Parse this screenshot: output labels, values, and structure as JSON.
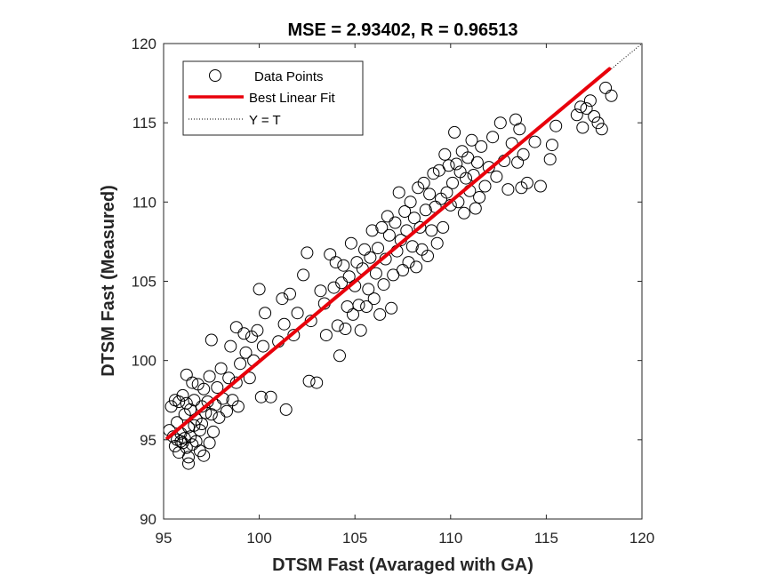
{
  "chart_data": {
    "type": "scatter",
    "title": "MSE = 2.93402, R = 0.96513",
    "xlabel": "DTSM Fast (Avaraged with GA)",
    "ylabel": "DTSM Fast (Measured)",
    "xlim": [
      95,
      120
    ],
    "ylim": [
      90,
      120
    ],
    "xticks": [
      "95",
      "100",
      "105",
      "110",
      "115",
      "120"
    ],
    "yticks": [
      "90",
      "95",
      "100",
      "105",
      "110",
      "115",
      "120"
    ],
    "grid": false,
    "legend": {
      "placement": "top-left",
      "entries": [
        "Data Points",
        "Best Linear Fit",
        "Y = T"
      ]
    },
    "colors": {
      "points": "#000000",
      "fit": "#e8000b",
      "identity": "#000000"
    },
    "series": [
      {
        "name": "Data Points",
        "marker": "open-circle",
        "points": [
          [
            95.3,
            95.6
          ],
          [
            95.4,
            97.1
          ],
          [
            95.5,
            95.2
          ],
          [
            95.6,
            94.6
          ],
          [
            95.7,
            95.0
          ],
          [
            95.8,
            97.4
          ],
          [
            95.9,
            94.9
          ],
          [
            95.7,
            96.1
          ],
          [
            95.6,
            97.5
          ],
          [
            95.8,
            94.2
          ],
          [
            95.9,
            95.4
          ],
          [
            96.0,
            97.8
          ],
          [
            96.0,
            94.8
          ],
          [
            96.1,
            95.1
          ],
          [
            96.1,
            96.6
          ],
          [
            96.2,
            97.3
          ],
          [
            96.2,
            99.1
          ],
          [
            96.2,
            94.5
          ],
          [
            96.3,
            95.8
          ],
          [
            96.3,
            93.9
          ],
          [
            96.4,
            95.2
          ],
          [
            96.4,
            96.9
          ],
          [
            96.5,
            98.6
          ],
          [
            96.5,
            94.7
          ],
          [
            96.3,
            93.5
          ],
          [
            96.6,
            95.9
          ],
          [
            96.6,
            97.5
          ],
          [
            96.7,
            94.9
          ],
          [
            96.7,
            96.3
          ],
          [
            96.8,
            98.5
          ],
          [
            96.9,
            94.3
          ],
          [
            96.9,
            95.6
          ],
          [
            97.0,
            97.1
          ],
          [
            97.0,
            96.0
          ],
          [
            97.1,
            98.2
          ],
          [
            97.1,
            94.0
          ],
          [
            97.2,
            96.7
          ],
          [
            97.3,
            97.4
          ],
          [
            97.4,
            94.8
          ],
          [
            97.4,
            99.0
          ],
          [
            97.5,
            96.6
          ],
          [
            97.5,
            101.3
          ],
          [
            97.6,
            95.5
          ],
          [
            97.7,
            97.2
          ],
          [
            97.8,
            98.3
          ],
          [
            97.9,
            96.4
          ],
          [
            98.0,
            99.5
          ],
          [
            98.1,
            97.6
          ],
          [
            98.3,
            96.8
          ],
          [
            98.4,
            98.9
          ],
          [
            98.5,
            100.9
          ],
          [
            98.6,
            97.5
          ],
          [
            98.8,
            98.6
          ],
          [
            98.8,
            102.1
          ],
          [
            98.9,
            97.1
          ],
          [
            99.0,
            99.8
          ],
          [
            99.2,
            101.7
          ],
          [
            99.3,
            100.5
          ],
          [
            99.5,
            98.9
          ],
          [
            99.6,
            101.5
          ],
          [
            99.7,
            100.0
          ],
          [
            99.9,
            101.9
          ],
          [
            100.0,
            104.5
          ],
          [
            100.1,
            97.7
          ],
          [
            100.2,
            100.9
          ],
          [
            100.3,
            103.0
          ],
          [
            100.6,
            97.7
          ],
          [
            101.0,
            101.2
          ],
          [
            101.2,
            103.9
          ],
          [
            101.3,
            102.3
          ],
          [
            101.4,
            96.9
          ],
          [
            101.6,
            104.2
          ],
          [
            101.8,
            101.6
          ],
          [
            102.0,
            103.0
          ],
          [
            102.3,
            105.4
          ],
          [
            102.5,
            106.8
          ],
          [
            102.6,
            98.7
          ],
          [
            102.7,
            102.5
          ],
          [
            103.0,
            98.6
          ],
          [
            103.2,
            104.4
          ],
          [
            103.4,
            103.6
          ],
          [
            103.5,
            101.6
          ],
          [
            103.7,
            106.7
          ],
          [
            103.9,
            104.6
          ],
          [
            104.0,
            106.2
          ],
          [
            104.1,
            102.2
          ],
          [
            104.2,
            100.3
          ],
          [
            104.3,
            104.9
          ],
          [
            104.4,
            106.0
          ],
          [
            104.5,
            102.0
          ],
          [
            104.6,
            103.4
          ],
          [
            104.7,
            105.3
          ],
          [
            104.8,
            107.4
          ],
          [
            104.9,
            102.9
          ],
          [
            105.0,
            104.7
          ],
          [
            105.1,
            106.2
          ],
          [
            105.2,
            103.5
          ],
          [
            105.3,
            101.9
          ],
          [
            105.4,
            105.8
          ],
          [
            105.5,
            107.0
          ],
          [
            105.6,
            103.4
          ],
          [
            105.7,
            104.5
          ],
          [
            105.8,
            106.5
          ],
          [
            105.9,
            108.2
          ],
          [
            106.0,
            103.9
          ],
          [
            106.1,
            105.5
          ],
          [
            106.2,
            107.1
          ],
          [
            106.3,
            102.9
          ],
          [
            106.4,
            108.4
          ],
          [
            106.5,
            104.8
          ],
          [
            106.6,
            106.4
          ],
          [
            106.7,
            109.1
          ],
          [
            106.8,
            107.9
          ],
          [
            106.9,
            103.3
          ],
          [
            107.0,
            105.4
          ],
          [
            107.1,
            108.7
          ],
          [
            107.2,
            106.9
          ],
          [
            107.3,
            110.6
          ],
          [
            107.4,
            107.6
          ],
          [
            107.5,
            105.7
          ],
          [
            107.6,
            109.4
          ],
          [
            107.7,
            108.2
          ],
          [
            107.8,
            106.2
          ],
          [
            107.9,
            110.0
          ],
          [
            108.0,
            107.2
          ],
          [
            108.1,
            109.0
          ],
          [
            108.2,
            105.9
          ],
          [
            108.3,
            110.9
          ],
          [
            108.4,
            108.4
          ],
          [
            108.5,
            107.0
          ],
          [
            108.6,
            111.2
          ],
          [
            108.7,
            109.5
          ],
          [
            108.8,
            106.6
          ],
          [
            108.9,
            110.5
          ],
          [
            109.0,
            108.2
          ],
          [
            109.1,
            111.8
          ],
          [
            109.2,
            109.7
          ],
          [
            109.3,
            107.4
          ],
          [
            109.4,
            112.0
          ],
          [
            109.5,
            110.2
          ],
          [
            109.6,
            108.4
          ],
          [
            109.7,
            113.0
          ],
          [
            109.8,
            110.6
          ],
          [
            109.9,
            112.3
          ],
          [
            110.0,
            109.8
          ],
          [
            110.1,
            111.2
          ],
          [
            110.2,
            114.4
          ],
          [
            110.3,
            112.4
          ],
          [
            110.4,
            110.0
          ],
          [
            110.5,
            111.9
          ],
          [
            110.6,
            113.2
          ],
          [
            110.7,
            109.3
          ],
          [
            110.8,
            111.5
          ],
          [
            110.9,
            112.8
          ],
          [
            111.0,
            110.7
          ],
          [
            111.1,
            113.9
          ],
          [
            111.2,
            111.7
          ],
          [
            111.3,
            109.6
          ],
          [
            111.4,
            112.5
          ],
          [
            111.5,
            110.3
          ],
          [
            111.6,
            113.5
          ],
          [
            111.8,
            111.0
          ],
          [
            112.0,
            112.2
          ],
          [
            112.2,
            114.1
          ],
          [
            112.4,
            111.6
          ],
          [
            112.6,
            115.0
          ],
          [
            112.8,
            112.6
          ],
          [
            113.0,
            110.8
          ],
          [
            113.2,
            113.7
          ],
          [
            113.4,
            115.2
          ],
          [
            113.5,
            112.5
          ],
          [
            113.6,
            114.6
          ],
          [
            113.7,
            110.9
          ],
          [
            113.8,
            113.0
          ],
          [
            114.0,
            111.2
          ],
          [
            114.4,
            113.8
          ],
          [
            114.7,
            111.0
          ],
          [
            115.2,
            112.7
          ],
          [
            115.3,
            113.6
          ],
          [
            115.5,
            114.8
          ],
          [
            116.6,
            115.5
          ],
          [
            116.9,
            114.7
          ],
          [
            117.3,
            116.4
          ],
          [
            117.5,
            115.4
          ],
          [
            117.9,
            114.6
          ],
          [
            118.1,
            117.2
          ],
          [
            118.4,
            116.7
          ],
          [
            117.1,
            115.9
          ],
          [
            117.7,
            115.0
          ],
          [
            116.8,
            116.0
          ]
        ]
      }
    ],
    "fit_line": {
      "x": [
        95.2,
        118.3
      ],
      "y": [
        95.1,
        118.4
      ]
    },
    "identity_line": {
      "x": [
        95,
        120
      ],
      "y": [
        95,
        120
      ]
    }
  }
}
